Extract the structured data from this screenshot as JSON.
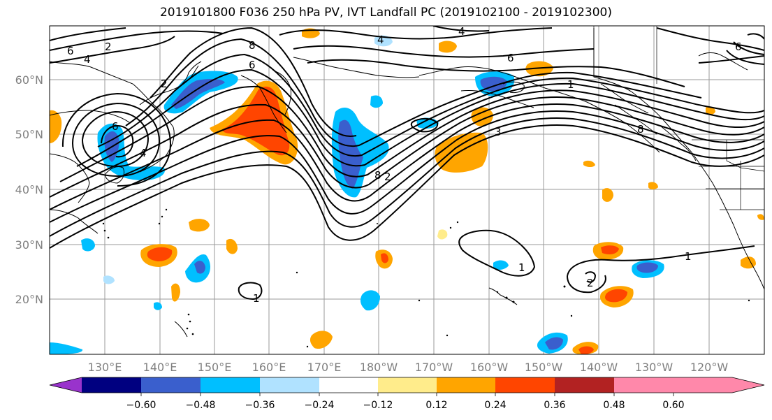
{
  "title": "2019101800 F036 250 hPa PV, IVT Landfall PC (2019102100 - 2019102300)",
  "lat_ticks": [
    "60°N",
    "50°N",
    "40°N",
    "30°N",
    "20°N"
  ],
  "lon_ticks": [
    "130°E",
    "140°E",
    "150°E",
    "160°E",
    "170°E",
    "180°W",
    "170°W",
    "160°W",
    "150°W",
    "140°W",
    "130°W",
    "120°W"
  ],
  "colorbar": {
    "colors": [
      "#9933cc",
      "#000080",
      "#3a5fcd",
      "#00bfff",
      "#b0e2ff",
      "#ffffff",
      "#ffec8b",
      "#ffa500",
      "#ff4500",
      "#b22222",
      "#ff88aa"
    ],
    "labels": [
      "−0.60",
      "−0.48",
      "−0.36",
      "−0.24",
      "−0.12",
      "0.12",
      "0.24",
      "0.36",
      "0.48",
      "0.60"
    ]
  },
  "contour_labels": [
    {
      "text": "6"
    },
    {
      "text": "4"
    },
    {
      "text": "2"
    },
    {
      "text": "8"
    },
    {
      "text": "6"
    },
    {
      "text": "2"
    },
    {
      "text": "4"
    },
    {
      "text": "6"
    },
    {
      "text": "1"
    },
    {
      "text": "3"
    },
    {
      "text": "8"
    },
    {
      "text": "1"
    },
    {
      "text": "2"
    },
    {
      "text": "6"
    },
    {
      "text": "4"
    },
    {
      "text": "1"
    },
    {
      "text": "8"
    },
    {
      "text": "2"
    },
    {
      "text": "1"
    },
    {
      "text": "6"
    },
    {
      "text": "4"
    }
  ]
}
